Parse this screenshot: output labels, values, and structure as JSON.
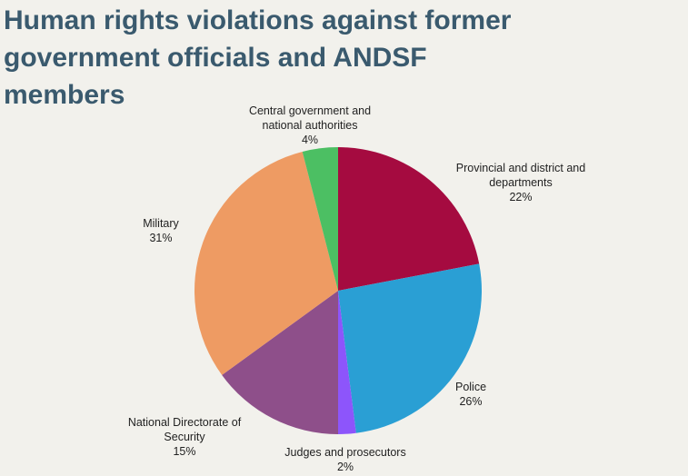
{
  "chart_data": {
    "type": "pie",
    "title": "Human rights violations against former government officials and ANDSF members",
    "start": "top",
    "direction": "clockwise",
    "slices": [
      {
        "label": "Provincial and district and departments",
        "value": 22,
        "display": "22%",
        "color": "#a50b40"
      },
      {
        "label": "Police",
        "value": 26,
        "display": "26%",
        "color": "#2a9fd4"
      },
      {
        "label": "Judges and prosecutors",
        "value": 2,
        "display": "2%",
        "color": "#8d55fb"
      },
      {
        "label": "National Directorate of Security",
        "value": 15,
        "display": "15%",
        "color": "#8e4f8a"
      },
      {
        "label": "Military",
        "value": 31,
        "display": "31%",
        "color": "#ee9b63"
      },
      {
        "label": "Central government and national authorities",
        "value": 4,
        "display": "4%",
        "color": "#4cbf63"
      }
    ]
  }
}
